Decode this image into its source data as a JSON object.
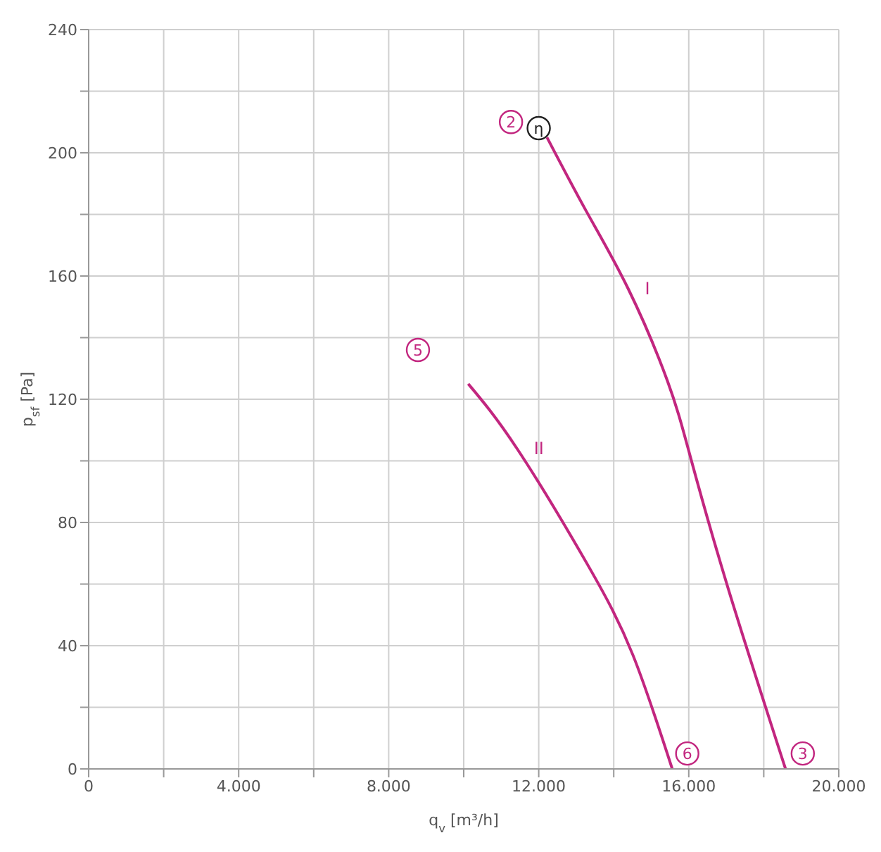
{
  "chart_data": {
    "type": "line",
    "xlabel": "q$_{v}$ [m³/h]",
    "ylabel": "p$_{sf}$ [Pa]",
    "xlim": [
      0,
      20000
    ],
    "ylim": [
      0,
      240
    ],
    "xticks": [
      0,
      {
        "value": 2000,
        "label": null
      },
      {
        "value": 4000,
        "label": "4.000"
      },
      {
        "value": 6000,
        "label": null
      },
      {
        "value": 8000,
        "label": "8.000"
      },
      {
        "value": 10000,
        "label": null
      },
      {
        "value": 12000,
        "label": "12.000"
      },
      {
        "value": 14000,
        "label": null
      },
      {
        "value": 16000,
        "label": "16.000"
      },
      {
        "value": 18000,
        "label": null
      },
      {
        "value": 20000,
        "label": "20.000"
      }
    ],
    "yticks": [
      0,
      {
        "value": 20,
        "label": null
      },
      40,
      {
        "value": 60,
        "label": null
      },
      80,
      {
        "value": 100,
        "label": null
      },
      120,
      {
        "value": 140,
        "label": null
      },
      160,
      {
        "value": 180,
        "label": null
      },
      200,
      {
        "value": 220,
        "label": null
      },
      240
    ],
    "grid": true,
    "marker": "none",
    "line_style": "solid",
    "series": [
      {
        "name": "I",
        "color": "#c2267f",
        "x": [
          12220,
          13270,
          14380,
          15430,
          16050,
          17040,
          18580
        ],
        "values": [
          205,
          181,
          156,
          126,
          101,
          59,
          0
        ]
      },
      {
        "name": "II",
        "color": "#c2267f",
        "x": [
          10120,
          11420,
          13270,
          14510,
          15560
        ],
        "values": [
          125,
          104,
          67,
          37,
          0
        ]
      }
    ],
    "annotations": [
      {
        "text": "η",
        "x": 12000,
        "y": 208
      },
      {
        "text": "2",
        "x": 11260,
        "y": 210
      },
      {
        "text": "5",
        "x": 8780,
        "y": 136
      },
      {
        "text": "6",
        "x": 15960,
        "y": 5
      },
      {
        "text": "3",
        "x": 19040,
        "y": 5
      }
    ]
  }
}
